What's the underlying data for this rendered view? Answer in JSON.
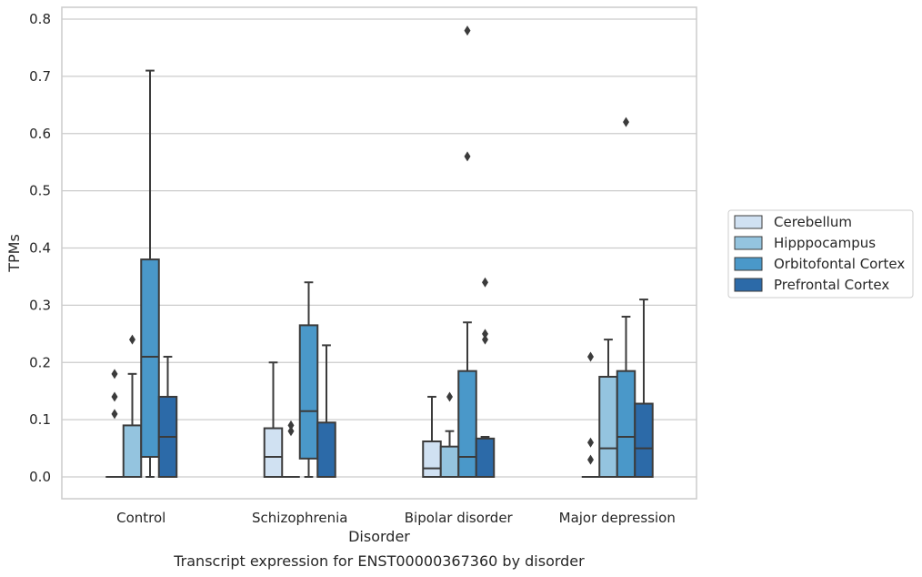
{
  "chart_data": {
    "type": "box",
    "caption": "Transcript expression for ENST00000367360 by disorder",
    "xlabel": "Disorder",
    "ylabel": "TPMs",
    "ylim": [
      -0.04,
      0.82
    ],
    "yticks": [
      0.0,
      0.1,
      0.2,
      0.3,
      0.4,
      0.5,
      0.6,
      0.7,
      0.8
    ],
    "ytick_labels": [
      "0.0",
      "0.1",
      "0.2",
      "0.3",
      "0.4",
      "0.5",
      "0.6",
      "0.7",
      "0.8"
    ],
    "grid": "horizontal",
    "legend_position": "right",
    "categories": [
      "Control",
      "Schizophrenia",
      "Bipolar disorder",
      "Major depression"
    ],
    "series": [
      {
        "name": "Cerebellum",
        "color": "#d0e1f2",
        "boxes": [
          {
            "whislo": 0.0,
            "q1": 0.0,
            "med": 0.0,
            "q3": 0.0,
            "whishi": 0.0,
            "fliers": [
              0.11,
              0.14,
              0.18
            ]
          },
          {
            "whislo": 0.0,
            "q1": 0.0,
            "med": 0.035,
            "q3": 0.085,
            "whishi": 0.2,
            "fliers": []
          },
          {
            "whislo": 0.0,
            "q1": 0.0,
            "med": 0.015,
            "q3": 0.062,
            "whishi": 0.14,
            "fliers": []
          },
          {
            "whislo": 0.0,
            "q1": 0.0,
            "med": 0.0,
            "q3": 0.0,
            "whishi": 0.0,
            "fliers": [
              0.03,
              0.06,
              0.21
            ]
          }
        ]
      },
      {
        "name": "Hipppocampus",
        "color": "#94c4df",
        "boxes": [
          {
            "whislo": 0.0,
            "q1": 0.0,
            "med": 0.0,
            "q3": 0.09,
            "whishi": 0.18,
            "fliers": [
              0.24
            ]
          },
          {
            "whislo": 0.0,
            "q1": 0.0,
            "med": 0.0,
            "q3": 0.0,
            "whishi": 0.0,
            "fliers": [
              0.08,
              0.09
            ]
          },
          {
            "whislo": 0.0,
            "q1": 0.0,
            "med": 0.0,
            "q3": 0.053,
            "whishi": 0.08,
            "fliers": [
              0.14
            ]
          },
          {
            "whislo": 0.0,
            "q1": 0.0,
            "med": 0.05,
            "q3": 0.175,
            "whishi": 0.24,
            "fliers": []
          }
        ]
      },
      {
        "name": "Orbitofontal Cortex",
        "color": "#4a98c9",
        "boxes": [
          {
            "whislo": 0.0,
            "q1": 0.035,
            "med": 0.21,
            "q3": 0.38,
            "whishi": 0.71,
            "fliers": []
          },
          {
            "whislo": 0.0,
            "q1": 0.032,
            "med": 0.115,
            "q3": 0.265,
            "whishi": 0.34,
            "fliers": []
          },
          {
            "whislo": 0.0,
            "q1": 0.0,
            "med": 0.035,
            "q3": 0.185,
            "whishi": 0.27,
            "fliers": [
              0.56,
              0.78
            ]
          },
          {
            "whislo": 0.0,
            "q1": 0.0,
            "med": 0.07,
            "q3": 0.185,
            "whishi": 0.28,
            "fliers": [
              0.62
            ]
          }
        ]
      },
      {
        "name": "Prefrontal Cortex",
        "color": "#2c6aa8",
        "boxes": [
          {
            "whislo": 0.0,
            "q1": 0.0,
            "med": 0.07,
            "q3": 0.14,
            "whishi": 0.21,
            "fliers": []
          },
          {
            "whislo": 0.0,
            "q1": 0.0,
            "med": 0.0,
            "q3": 0.095,
            "whishi": 0.23,
            "fliers": []
          },
          {
            "whislo": 0.0,
            "q1": 0.0,
            "med": 0.0,
            "q3": 0.067,
            "whishi": 0.07,
            "fliers": [
              0.24,
              0.25,
              0.34
            ]
          },
          {
            "whislo": 0.0,
            "q1": 0.0,
            "med": 0.05,
            "q3": 0.128,
            "whishi": 0.31,
            "fliers": []
          }
        ]
      }
    ]
  }
}
